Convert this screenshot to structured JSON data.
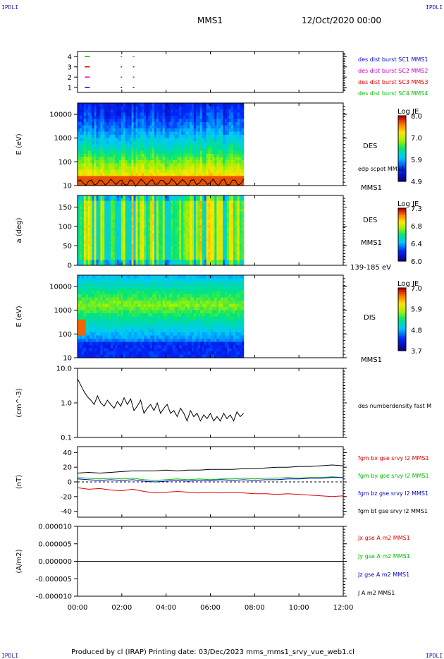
{
  "corner_label": "IPDLI",
  "header": {
    "spacecraft": "MMS1",
    "date": "12/Oct/2020 00:00"
  },
  "footer": "Produced by cl (IRAP)   Printing date: 03/Dec/2023   mms_mms1_srvy_vue_web1.cl",
  "colors": {
    "mms1": "#0000cc",
    "mms2": "#cc00cc",
    "mms3": "#dd0000",
    "mms4": "#00bb00",
    "bx": "#dd0000",
    "by": "#00bb00",
    "bz": "#0000cc",
    "bt": "#000000"
  },
  "chart_data": [
    {
      "type": "scatter",
      "panel": "burst-availability",
      "ylim": [
        0.5,
        4.5
      ],
      "yticks": [
        "1",
        "2",
        "3",
        "4"
      ],
      "legend": [
        {
          "label": "des dist burst SC1 MMS1",
          "color": "#0000cc"
        },
        {
          "label": "des dist burst SC2 MMS2",
          "color": "#cc00cc"
        },
        {
          "label": "des dist burst SC3 MMS3",
          "color": "#dd0000"
        },
        {
          "label": "des dist burst SC4 MMS4",
          "color": "#00bb00"
        }
      ],
      "series": [
        {
          "y": 1,
          "color": "#0000cc",
          "x": [
            0.33,
            1.95,
            2.5
          ]
        },
        {
          "y": 2,
          "color": "#cc00cc",
          "x": [
            0.33,
            1.95,
            2.5
          ]
        },
        {
          "y": 3,
          "color": "#dd0000",
          "x": [
            0.33,
            1.95,
            2.5
          ]
        },
        {
          "y": 4,
          "color": "#00bb00",
          "x": [
            0.33,
            1.95,
            2.5
          ]
        }
      ]
    },
    {
      "type": "heatmap",
      "panel": "des-energy-spectrogram",
      "ylabel": "E (eV)",
      "yscale": "log",
      "ylim": [
        10,
        30000
      ],
      "yticks": [
        "10",
        "100",
        "1000",
        "10000"
      ],
      "data_end_hour": 7.5,
      "colorbar": {
        "title": "Log JE",
        "ticks": [
          "8.0",
          "7.0",
          "5.9",
          "4.9"
        ]
      },
      "right_labels": [
        "DES",
        "edp scpot MMS1",
        "MMS1"
      ]
    },
    {
      "type": "heatmap",
      "panel": "des-pitch-angle",
      "ylabel": "a (deg)",
      "ylim": [
        0,
        180
      ],
      "yticks": [
        "0",
        "50",
        "100",
        "150"
      ],
      "data_end_hour": 7.5,
      "colorbar": {
        "title": "Log JE",
        "ticks": [
          "7.3",
          "6.8",
          "6.4",
          "6.0"
        ]
      },
      "right_labels": [
        "DES",
        "MMS1",
        "139-185 eV"
      ]
    },
    {
      "type": "heatmap",
      "panel": "dis-energy-spectrogram",
      "ylabel": "E (eV)",
      "yscale": "log",
      "ylim": [
        10,
        30000
      ],
      "yticks": [
        "10",
        "100",
        "1000",
        "10000"
      ],
      "data_end_hour": 7.5,
      "colorbar": {
        "title": "Log JE",
        "ticks": [
          "7.0",
          "5.9",
          "4.8",
          "3.7"
        ]
      },
      "right_labels": [
        "DIS",
        "MMS1"
      ]
    },
    {
      "type": "line",
      "panel": "des-density",
      "ylabel": "(cm^-3)",
      "yscale": "log",
      "ylim": [
        0.1,
        10
      ],
      "yticks": [
        "0.1",
        "1.0",
        "10.0"
      ],
      "legend": [
        {
          "label": "des numberdensity fast M",
          "color": "#000000"
        }
      ],
      "series": [
        {
          "name": "des numberdensity fast M",
          "color": "#000000",
          "x": [
            0.0,
            0.15,
            0.3,
            0.45,
            0.6,
            0.75,
            0.9,
            1.05,
            1.2,
            1.35,
            1.5,
            1.65,
            1.8,
            1.95,
            2.1,
            2.25,
            2.4,
            2.55,
            2.7,
            2.85,
            3.0,
            3.15,
            3.3,
            3.45,
            3.6,
            3.75,
            3.9,
            4.05,
            4.2,
            4.35,
            4.5,
            4.65,
            4.8,
            4.95,
            5.1,
            5.25,
            5.4,
            5.55,
            5.7,
            5.85,
            6.0,
            6.15,
            6.3,
            6.45,
            6.6,
            6.75,
            6.9,
            7.05,
            7.2,
            7.35,
            7.5
          ],
          "y": [
            5.0,
            3.2,
            2.1,
            1.5,
            1.2,
            0.9,
            1.6,
            1.0,
            0.8,
            1.2,
            0.9,
            0.7,
            1.1,
            0.8,
            1.4,
            0.9,
            1.3,
            0.6,
            0.8,
            1.2,
            0.5,
            0.7,
            0.9,
            0.6,
            1.0,
            0.5,
            0.7,
            0.9,
            0.5,
            0.6,
            0.4,
            0.7,
            0.5,
            0.3,
            0.6,
            0.4,
            0.5,
            0.3,
            0.45,
            0.35,
            0.5,
            0.3,
            0.4,
            0.3,
            0.5,
            0.35,
            0.45,
            0.3,
            0.55,
            0.4,
            0.5
          ]
        }
      ]
    },
    {
      "type": "line",
      "panel": "fgm-magnetic-field",
      "ylabel": "(nT)",
      "ylim": [
        -48,
        48
      ],
      "yticks": [
        "-40",
        "-20",
        "0",
        "20",
        "40"
      ],
      "legend": [
        {
          "label": "fgm bx gse srvy l2 MMS1",
          "color": "#dd0000"
        },
        {
          "label": "fgm by gse srvy l2 MMS1",
          "color": "#00bb00"
        },
        {
          "label": "fgm bz gse srvy l2 MMS1",
          "color": "#0000cc"
        },
        {
          "label": "fgm bt gse srvy l2 MMS1",
          "color": "#000000"
        }
      ],
      "series": [
        {
          "name": "fgm bx gse srvy l2 MMS1",
          "color": "#dd0000",
          "x": [
            0,
            0.5,
            1,
            1.5,
            2,
            2.5,
            3,
            3.5,
            4,
            4.5,
            5,
            5.5,
            6,
            6.5,
            7,
            7.5,
            8,
            8.5,
            9,
            9.5,
            10,
            10.5,
            11,
            11.5,
            12
          ],
          "y": [
            -8,
            -10,
            -9,
            -11,
            -12,
            -10,
            -13,
            -15,
            -14,
            -13,
            -14,
            -15,
            -14,
            -15,
            -14,
            -15,
            -16,
            -16,
            -17,
            -16,
            -17,
            -18,
            -19,
            -20,
            -19
          ]
        },
        {
          "name": "fgm by gse srvy l2 MMS1",
          "color": "#00bb00",
          "x": [
            0,
            0.5,
            1,
            1.5,
            2,
            2.5,
            3,
            3.5,
            4,
            4.5,
            5,
            5.5,
            6,
            6.5,
            7,
            7.5,
            8,
            8.5,
            9,
            9.5,
            10,
            10.5,
            11,
            11.5,
            12
          ],
          "y": [
            6,
            5,
            4,
            5,
            4,
            5,
            3,
            2,
            3,
            4,
            3,
            4,
            3,
            4,
            4,
            5,
            4,
            5,
            5,
            6,
            5,
            6,
            6,
            7,
            6
          ]
        },
        {
          "name": "fgm bz gse srvy l2 MMS1",
          "color": "#0000cc",
          "x": [
            0,
            0.5,
            1,
            1.5,
            2,
            2.5,
            3,
            3.5,
            4,
            4.5,
            5,
            5.5,
            6,
            6.5,
            7,
            7.5,
            8,
            8.5,
            9,
            9.5,
            10,
            10.5,
            11,
            11.5,
            12
          ],
          "y": [
            4,
            3,
            2,
            3,
            2,
            3,
            1,
            0,
            1,
            2,
            1,
            2,
            2,
            3,
            2,
            3,
            2,
            3,
            3,
            4,
            4,
            5,
            5,
            6,
            6
          ]
        },
        {
          "name": "fgm bt gse srvy l2 MMS1",
          "color": "#000000",
          "x": [
            0,
            0.5,
            1,
            1.5,
            2,
            2.5,
            3,
            3.5,
            4,
            4.5,
            5,
            5.5,
            6,
            6.5,
            7,
            7.5,
            8,
            8.5,
            9,
            9.5,
            10,
            10.5,
            11,
            11.5,
            12
          ],
          "y": [
            12,
            13,
            12,
            13,
            14,
            15,
            15,
            15,
            16,
            15,
            16,
            16,
            17,
            17,
            17,
            18,
            18,
            19,
            20,
            20,
            21,
            21,
            22,
            23,
            22
          ]
        }
      ]
    },
    {
      "type": "line",
      "panel": "current-density",
      "ylabel": "(A/m2)",
      "ylim": [
        -1e-05,
        1e-05
      ],
      "yticks": [
        "-0.000010",
        "-0.000005",
        "0.000000",
        "0.000005",
        "0.000010"
      ],
      "legend": [
        {
          "label": "Jx gse A m2 MMS1",
          "color": "#dd0000"
        },
        {
          "label": "Jy gse A m2 MMS1",
          "color": "#00bb00"
        },
        {
          "label": "Jz gse A m2 MMS1",
          "color": "#0000cc"
        },
        {
          "label": "J A m2 MMS1",
          "color": "#000000"
        }
      ],
      "series": [
        {
          "name": "J A m2 MMS1",
          "color": "#000000",
          "x": [
            0,
            12
          ],
          "y": [
            0,
            0
          ]
        }
      ]
    }
  ],
  "time_axis": {
    "range_hours": [
      0,
      12
    ],
    "ticks": [
      "00:00",
      "02:00",
      "04:00",
      "06:00",
      "08:00",
      "10:00",
      "12:00"
    ]
  }
}
